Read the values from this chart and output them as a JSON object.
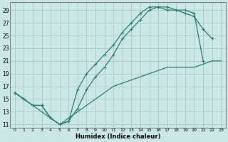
{
  "xlabel": "Humidex (Indice chaleur)",
  "bg_color": "#cce8e6",
  "grid_color": "#aacfcb",
  "line_color": "#2a7a72",
  "xlim": [
    -0.5,
    23.5
  ],
  "ylim": [
    10.5,
    30.2
  ],
  "xticks": [
    0,
    1,
    2,
    3,
    4,
    5,
    6,
    7,
    8,
    9,
    10,
    11,
    12,
    13,
    14,
    15,
    16,
    17,
    18,
    19,
    20,
    21,
    22,
    23
  ],
  "yticks": [
    11,
    13,
    15,
    17,
    19,
    21,
    23,
    25,
    27,
    29
  ],
  "line1_x": [
    0,
    1,
    2,
    3,
    4,
    5,
    6,
    7,
    8,
    9,
    10,
    11,
    12,
    13,
    14,
    15,
    16,
    17,
    18,
    19,
    20,
    21
  ],
  "line1_y": [
    16,
    15,
    14,
    14,
    12,
    11,
    11.5,
    13.5,
    16.5,
    18.5,
    20,
    22,
    24.5,
    26,
    27.5,
    29,
    29.5,
    29.5,
    29,
    29,
    28.5,
    21
  ],
  "line2_x": [
    0,
    1,
    2,
    3,
    4,
    5,
    6,
    7,
    8,
    9,
    10,
    11,
    12,
    13,
    14,
    15,
    16,
    17,
    18,
    19,
    20,
    21,
    22
  ],
  "line2_y": [
    16,
    15,
    14,
    14,
    12,
    11,
    11.5,
    16.5,
    19,
    20.5,
    22,
    23.5,
    25.5,
    27,
    28.5,
    29.5,
    29.5,
    29,
    29,
    28.5,
    28,
    26,
    24.5
  ],
  "line3_x": [
    0,
    1,
    5,
    10,
    11,
    12,
    13,
    14,
    15,
    16,
    17,
    18,
    19,
    20,
    21,
    22,
    23
  ],
  "line3_y": [
    16,
    15,
    11,
    16,
    17,
    17.5,
    18,
    18.5,
    19,
    19.5,
    20,
    20,
    20,
    20,
    20.5,
    21,
    21
  ]
}
